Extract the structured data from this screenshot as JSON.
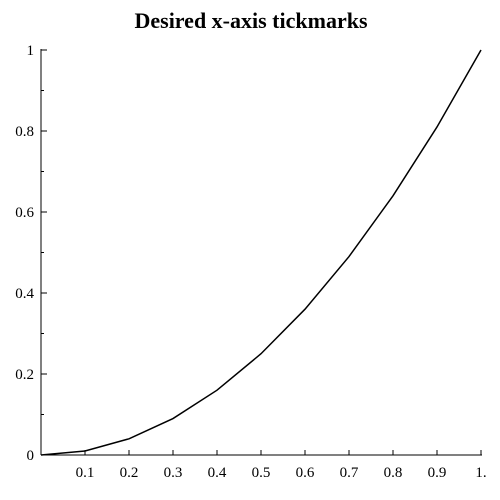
{
  "chart_data": {
    "type": "line",
    "title": "Desired x-axis tickmarks",
    "xlabel": "",
    "ylabel": "",
    "xlim": [
      0,
      1
    ],
    "ylim": [
      0,
      1
    ],
    "grid": false,
    "x_ticks": [
      {
        "value": 0.1,
        "label": "0.1"
      },
      {
        "value": 0.2,
        "label": "0.2"
      },
      {
        "value": 0.3,
        "label": "0.3"
      },
      {
        "value": 0.4,
        "label": "0.4"
      },
      {
        "value": 0.5,
        "label": "0.5"
      },
      {
        "value": 0.6,
        "label": "0.6"
      },
      {
        "value": 0.7,
        "label": "0.7"
      },
      {
        "value": 0.8,
        "label": "0.8"
      },
      {
        "value": 0.9,
        "label": "0.9"
      },
      {
        "value": 1.0,
        "label": "1."
      }
    ],
    "y_ticks": [
      {
        "value": 0,
        "label": "0"
      },
      {
        "value": 0.2,
        "label": "0.2"
      },
      {
        "value": 0.4,
        "label": "0.4"
      },
      {
        "value": 0.6,
        "label": "0.6"
      },
      {
        "value": 0.8,
        "label": "0.8"
      },
      {
        "value": 1,
        "label": "1"
      }
    ],
    "y_minor_ticks": [
      0.1,
      0.3,
      0.5,
      0.7,
      0.9
    ],
    "series": [
      {
        "x": [
          0,
          0.1,
          0.2,
          0.3,
          0.4,
          0.5,
          0.6,
          0.7,
          0.8,
          0.9,
          1.0
        ],
        "y": [
          0,
          0.01,
          0.04,
          0.09,
          0.16,
          0.25,
          0.36,
          0.49,
          0.64,
          0.81,
          1.0
        ]
      }
    ]
  }
}
